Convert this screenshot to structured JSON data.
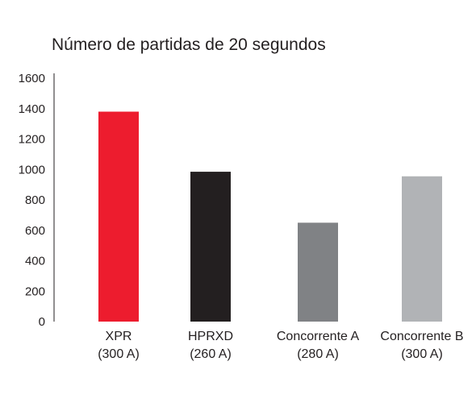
{
  "chart_data": {
    "type": "bar",
    "title": "Número de partidas de 20 segundos",
    "xlabel": "",
    "ylabel": "",
    "ylim": [
      0,
      1600
    ],
    "yticks": [
      "1600",
      "1400",
      "1200",
      "1000",
      "800",
      "600",
      "400",
      "200",
      "0"
    ],
    "grid": false,
    "legend": "none",
    "categories": [
      {
        "line1": "XPR",
        "line2": "(300 A)"
      },
      {
        "line1": "HPRXD",
        "line2": "(260 A)"
      },
      {
        "line1": "Concorrente A",
        "line2": "(280 A)"
      },
      {
        "line1": "Concorrente B",
        "line2": "(300 A)"
      }
    ],
    "values": [
      1380,
      985,
      650,
      955
    ],
    "colors": [
      "#ed1c2e",
      "#231f20",
      "#808285",
      "#b1b3b6"
    ]
  }
}
